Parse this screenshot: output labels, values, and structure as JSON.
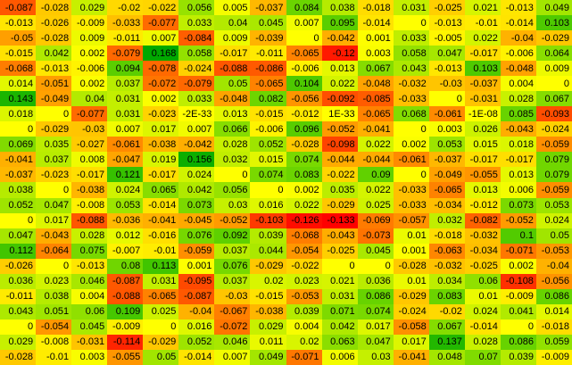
{
  "chart_data": {
    "type": "heatmap",
    "title": "",
    "rows": 24,
    "cols": 16,
    "color_scale": {
      "negative_extreme": "#ff0000",
      "midpoint": "#ffff00",
      "positive_extreme": "#00a800",
      "domain_min": -0.133,
      "domain_mid": 0,
      "domain_max": 0.168
    },
    "values": [
      [
        "-0.087",
        "-0.028",
        "0.029",
        "-0.02",
        "-0.022",
        "0.056",
        "0.005",
        "-0.037",
        "0.084",
        "0.038",
        "-0.018",
        "0.031",
        "-0.025",
        "0.021",
        "-0.013",
        "0.049"
      ],
      [
        "-0.013",
        "-0.026",
        "-0.009",
        "-0.033",
        "-0.077",
        "0.033",
        "0.04",
        "0.045",
        "0.007",
        "0.095",
        "-0.014",
        "0",
        "-0.013",
        "-0.01",
        "-0.014",
        "0.103"
      ],
      [
        "-0.05",
        "-0.028",
        "0.009",
        "-0.011",
        "0.007",
        "-0.084",
        "0.009",
        "-0.039",
        "0",
        "-0.042",
        "0.001",
        "0.033",
        "-0.005",
        "0.022",
        "-0.04",
        "-0.029"
      ],
      [
        "-0.015",
        "0.042",
        "0.002",
        "-0.079",
        "0.168",
        "0.058",
        "-0.017",
        "-0.011",
        "-0.065",
        "-0.12",
        "0.003",
        "0.058",
        "0.047",
        "-0.017",
        "-0.006",
        "0.064"
      ],
      [
        "-0.068",
        "-0.013",
        "-0.006",
        "0.094",
        "-0.078",
        "-0.024",
        "-0.088",
        "-0.086",
        "-0.006",
        "0.013",
        "0.067",
        "0.043",
        "-0.013",
        "0.103",
        "-0.048",
        "0.009"
      ],
      [
        "0.014",
        "-0.051",
        "0.002",
        "0.037",
        "-0.072",
        "-0.079",
        "0.05",
        "-0.065",
        "0.104",
        "0.022",
        "-0.048",
        "-0.032",
        "-0.03",
        "-0.037",
        "0.004",
        "0"
      ],
      [
        "0.143",
        "-0.049",
        "0.04",
        "0.031",
        "0.002",
        "0.033",
        "-0.048",
        "0.082",
        "-0.056",
        "-0.092",
        "-0.085",
        "-0.033",
        "0",
        "-0.031",
        "0.028",
        "0.067"
      ],
      [
        "0.018",
        "0",
        "-0.077",
        "0.031",
        "-0.023",
        "-2E-33",
        "0.013",
        "-0.015",
        "-0.012",
        "1E-33",
        "-0.065",
        "0.068",
        "-0.061",
        "-1E-08",
        "0.085",
        "-0.093"
      ],
      [
        "0",
        "-0.029",
        "-0.03",
        "0.007",
        "0.017",
        "0.007",
        "0.066",
        "-0.006",
        "0.096",
        "-0.052",
        "-0.041",
        "0",
        "0.003",
        "0.026",
        "-0.043",
        "-0.024"
      ],
      [
        "0.069",
        "0.035",
        "-0.027",
        "-0.061",
        "-0.038",
        "-0.042",
        "0.028",
        "0.052",
        "-0.028",
        "-0.098",
        "0.022",
        "0.002",
        "0.053",
        "0.015",
        "0.018",
        "-0.059"
      ],
      [
        "-0.041",
        "0.037",
        "0.008",
        "-0.047",
        "0.019",
        "0.156",
        "0.032",
        "0.015",
        "0.074",
        "-0.044",
        "-0.044",
        "-0.061",
        "-0.037",
        "-0.017",
        "-0.017",
        "0.079"
      ],
      [
        "-0.037",
        "-0.023",
        "-0.017",
        "0.121",
        "-0.017",
        "0.024",
        "0",
        "0.074",
        "0.083",
        "-0.022",
        "0.09",
        "0",
        "-0.049",
        "-0.055",
        "0.013",
        "0.079"
      ],
      [
        "0.038",
        "0",
        "-0.038",
        "0.024",
        "0.065",
        "0.042",
        "0.056",
        "0",
        "0.002",
        "0.035",
        "0.022",
        "-0.033",
        "-0.065",
        "0.013",
        "0.006",
        "-0.059"
      ],
      [
        "0.052",
        "0.047",
        "-0.008",
        "0.053",
        "-0.014",
        "0.073",
        "0.03",
        "0.016",
        "0.022",
        "-0.029",
        "0.025",
        "-0.033",
        "-0.034",
        "-0.012",
        "0.073",
        "0.053"
      ],
      [
        "0",
        "0.017",
        "-0.088",
        "-0.036",
        "-0.041",
        "-0.045",
        "-0.052",
        "-0.103",
        "-0.126",
        "-0.133",
        "-0.069",
        "-0.057",
        "0.032",
        "-0.082",
        "-0.052",
        "0.024"
      ],
      [
        "0.047",
        "-0.043",
        "0.028",
        "0.012",
        "-0.016",
        "0.076",
        "0.092",
        "0.039",
        "-0.068",
        "-0.043",
        "-0.073",
        "0.01",
        "-0.018",
        "-0.032",
        "0.1",
        "0.05"
      ],
      [
        "0.112",
        "-0.064",
        "0.075",
        "-0.007",
        "-0.01",
        "-0.059",
        "0.037",
        "0.044",
        "-0.054",
        "-0.025",
        "0.045",
        "0.001",
        "-0.063",
        "-0.034",
        "-0.071",
        "-0.053"
      ],
      [
        "-0.026",
        "0",
        "-0.013",
        "0.08",
        "0.113",
        "0.001",
        "0.076",
        "-0.029",
        "-0.022",
        "0",
        "0",
        "-0.028",
        "-0.032",
        "-0.025",
        "0.002",
        "-0.04"
      ],
      [
        "0.036",
        "0.023",
        "0.046",
        "-0.087",
        "0.031",
        "-0.095",
        "0.037",
        "0.02",
        "0.023",
        "0.021",
        "0.036",
        "0.01",
        "0.034",
        "0.06",
        "-0.108",
        "-0.056"
      ],
      [
        "-0.011",
        "0.038",
        "0.004",
        "-0.088",
        "-0.065",
        "-0.087",
        "-0.03",
        "-0.015",
        "-0.053",
        "0.031",
        "0.086",
        "-0.029",
        "0.083",
        "0.01",
        "-0.009",
        "0.086"
      ],
      [
        "0.043",
        "0.051",
        "0.06",
        "0.109",
        "0.025",
        "-0.04",
        "-0.067",
        "-0.038",
        "0.039",
        "0.071",
        "0.074",
        "-0.024",
        "-0.02",
        "0.024",
        "0.041",
        "0.014"
      ],
      [
        "0",
        "-0.054",
        "0.045",
        "-0.009",
        "0",
        "0.016",
        "-0.072",
        "0.029",
        "0.004",
        "0.042",
        "0.017",
        "-0.058",
        "0.067",
        "-0.014",
        "0",
        "-0.018"
      ],
      [
        "0.029",
        "-0.008",
        "-0.031",
        "-0.114",
        "-0.029",
        "0.052",
        "0.046",
        "0.011",
        "0.02",
        "0.063",
        "0.047",
        "0.017",
        "0.137",
        "0.028",
        "0.086",
        "0.059"
      ],
      [
        "-0.028",
        "-0.01",
        "0.003",
        "-0.055",
        "0.05",
        "-0.014",
        "0.007",
        "0.049",
        "-0.071",
        "0.006",
        "0.03",
        "-0.041",
        "0.048",
        "0.07",
        "0.039",
        "-0.009"
      ]
    ]
  }
}
